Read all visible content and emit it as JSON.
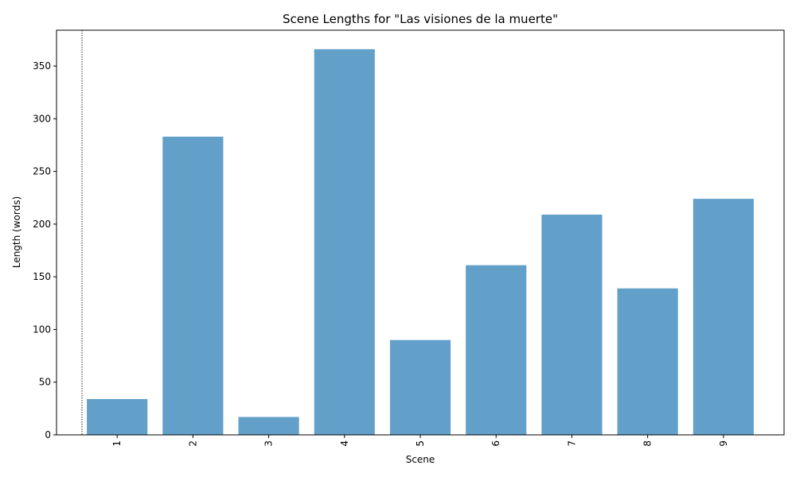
{
  "chart_data": {
    "type": "bar",
    "title": "Scene Lengths for \"Las visiones de la muerte\"",
    "xlabel": "Scene",
    "ylabel": "Length (words)",
    "categories": [
      "1",
      "2",
      "3",
      "4",
      "5",
      "6",
      "7",
      "8",
      "9"
    ],
    "values": [
      34,
      283,
      17,
      366,
      90,
      161,
      209,
      139,
      224
    ],
    "ylim": [
      0,
      384
    ],
    "yticks": [
      0,
      50,
      100,
      150,
      200,
      250,
      300,
      350
    ],
    "bar_color": "#1f77b4",
    "bar_opacity": 0.7,
    "grid": false,
    "x_tick_rotation": "vertical",
    "reference_line": {
      "style": "dotted",
      "color": "#000000"
    }
  }
}
